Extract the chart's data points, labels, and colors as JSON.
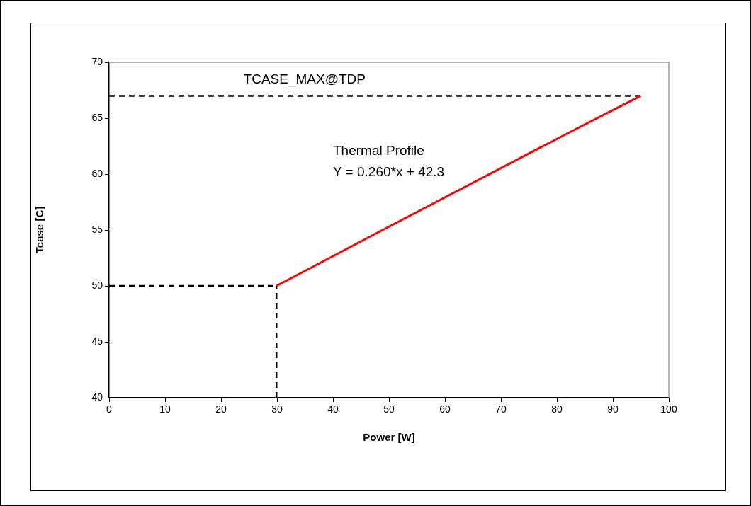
{
  "chart_data": {
    "type": "line",
    "xlabel": "Power [W]",
    "ylabel": "Tcase [C]",
    "xlim": [
      0,
      100
    ],
    "xticks": [
      0,
      10,
      20,
      30,
      40,
      50,
      60,
      70,
      80,
      90,
      100
    ],
    "ylim": [
      40,
      70
    ],
    "yticks": [
      40,
      45,
      50,
      55,
      60,
      65,
      70
    ],
    "grid": false,
    "legend": false,
    "marker": "none",
    "series": [
      {
        "color": "#ff0000",
        "x": [
          29.9,
          50,
          82.5,
          95
        ],
        "values": [
          50,
          55.3,
          63.8,
          67
        ],
        "line_style": "solid"
      },
      {
        "color": "#000000",
        "x": [
          0,
          95
        ],
        "values": [
          67,
          67
        ],
        "line_style": "dashed"
      },
      {
        "color": "#000000",
        "x": [
          0,
          29.9
        ],
        "values": [
          50,
          50
        ],
        "line_style": "dashed"
      },
      {
        "color": "#000000",
        "x": [
          29.9,
          29.9
        ],
        "values": [
          40,
          50
        ],
        "line_style": "dashed"
      }
    ],
    "annotations": [
      "TCASE_MAX@TDP",
      "Thermal Profile",
      "Y = 0.260*x + 42.3"
    ]
  }
}
